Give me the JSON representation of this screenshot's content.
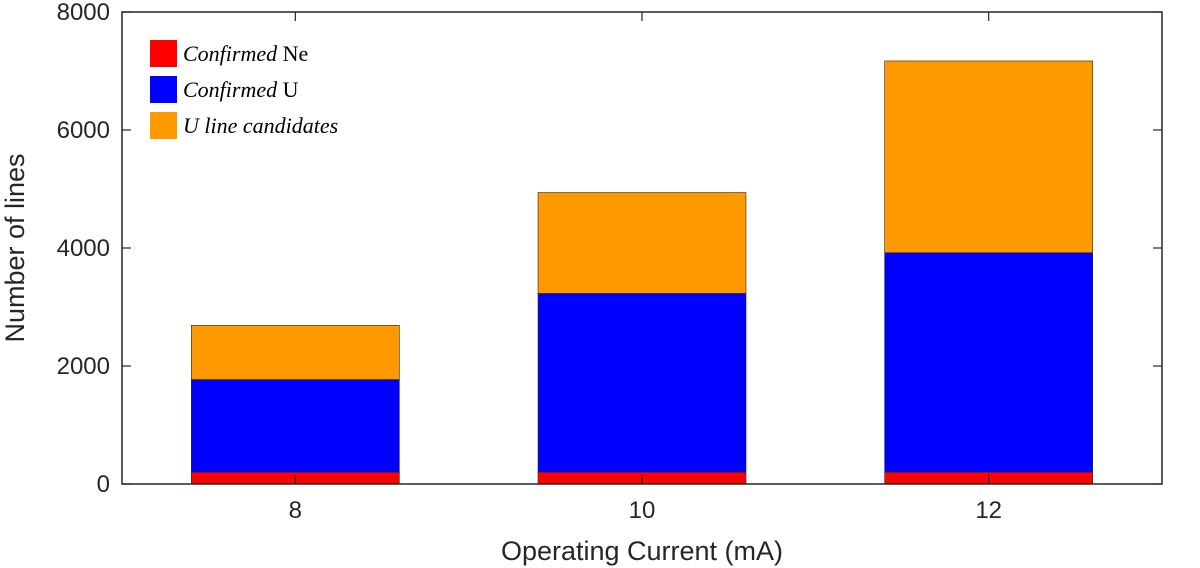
{
  "chart_data": {
    "type": "bar",
    "stacked": true,
    "categories": [
      "8",
      "10",
      "12"
    ],
    "series": [
      {
        "name_italic": "Confirmed",
        "name_plain": " Ne",
        "color": "#ff0000",
        "values": [
          200,
          200,
          200
        ]
      },
      {
        "name_italic": "Confirmed",
        "name_plain": " U",
        "color": "#0000ff",
        "values": [
          1570,
          3030,
          3720
        ]
      },
      {
        "name_italic": "U line candidates",
        "name_plain": "",
        "color": "#ff9900",
        "values": [
          920,
          1710,
          3250
        ]
      }
    ],
    "title": "",
    "xlabel": "Operating Current (mA)",
    "ylabel": "Number of lines",
    "ylim": [
      0,
      8000
    ],
    "yticks": [
      "0",
      "2000",
      "4000",
      "6000",
      "8000"
    ],
    "grid": false,
    "legend": "top-left"
  }
}
